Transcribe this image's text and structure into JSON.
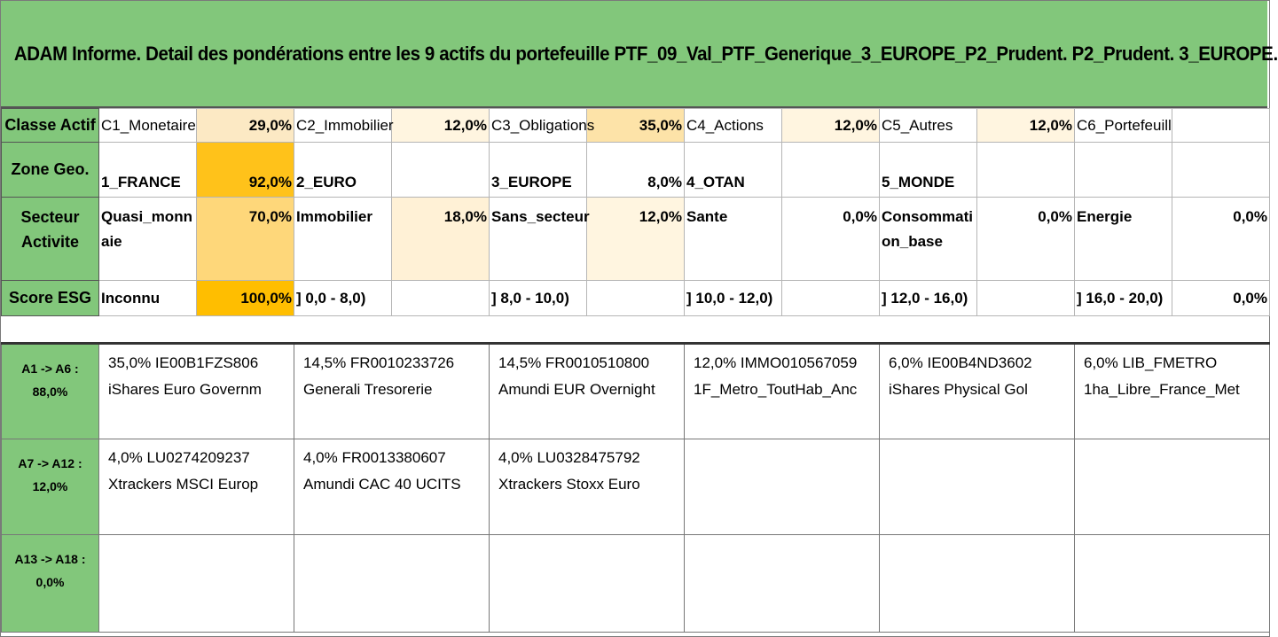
{
  "title": "ADAM Informe. Detail des pondérations entre les 9 actifs du portefeuille PTF_09_Val_PTF_Generique_3_EUROPE_P2_Prudent. P2_Prudent. 3_EUROPE.",
  "colors": {
    "header_green": "#82c77b",
    "heat_light": "#fff2cc",
    "heat_mid": "#ffd966",
    "heat_strong": "#ffc000"
  },
  "rows": {
    "classe": {
      "label": "Classe Actif",
      "cells": [
        {
          "name": "C1_Monetaire",
          "pct": "29,0%"
        },
        {
          "name": "C2_Immobilier",
          "pct": "12,0%"
        },
        {
          "name": "C3_Obligations",
          "pct": "35,0%"
        },
        {
          "name": "C4_Actions",
          "pct": "12,0%"
        },
        {
          "name": "C5_Autres",
          "pct": "12,0%"
        },
        {
          "name": "C6_Portefeuill",
          "pct": ""
        }
      ]
    },
    "zone": {
      "label": "Zone Geo.",
      "cells": [
        {
          "name": "1_FRANCE",
          "pct": "92,0%"
        },
        {
          "name": "2_EURO",
          "pct": ""
        },
        {
          "name": "3_EUROPE",
          "pct": "8,0%"
        },
        {
          "name": "4_OTAN",
          "pct": ""
        },
        {
          "name": "5_MONDE",
          "pct": ""
        },
        {
          "name": "",
          "pct": ""
        }
      ]
    },
    "secteur": {
      "label": "Secteur Activite",
      "cells": [
        {
          "name": "Quasi_monnaie",
          "pct": "70,0%"
        },
        {
          "name": "Immobilier",
          "pct": "18,0%"
        },
        {
          "name": "Sans_secteur",
          "pct": "12,0%"
        },
        {
          "name": "Sante",
          "pct": "0,0%"
        },
        {
          "name": "Consommation_base",
          "pct": "0,0%"
        },
        {
          "name": "Energie",
          "pct": "0,0%"
        }
      ]
    },
    "esg": {
      "label": "Score ESG",
      "cells": [
        {
          "name": "Inconnu",
          "pct": "100,0%"
        },
        {
          "name": "] 0,0 - 8,0)",
          "pct": ""
        },
        {
          "name": "] 8,0 - 10,0)",
          "pct": ""
        },
        {
          "name": "] 10,0 - 12,0)",
          "pct": ""
        },
        {
          "name": "] 12,0 - 16,0)",
          "pct": ""
        },
        {
          "name": "] 16,0 - 20,0)",
          "pct": "0,0%"
        }
      ]
    }
  },
  "assets": [
    {
      "label": "A1 -> A6 :",
      "total": "88,0%",
      "items": [
        {
          "line1": "35,0% IE00B1FZS806",
          "line2": "iShares Euro Governm"
        },
        {
          "line1": "14,5% FR0010233726",
          "line2": "Generali Tresorerie"
        },
        {
          "line1": "14,5% FR0010510800",
          "line2": "Amundi EUR Overnight"
        },
        {
          "line1": "12,0% IMMO010567059",
          "line2": "1F_Metro_ToutHab_Anc"
        },
        {
          "line1": "6,0% IE00B4ND3602",
          "line2": "iShares Physical Gol"
        },
        {
          "line1": "6,0% LIB_FMETRO",
          "line2": "1ha_Libre_France_Met"
        }
      ]
    },
    {
      "label": "A7 -> A12 :",
      "total": "12,0%",
      "items": [
        {
          "line1": "4,0% LU0274209237",
          "line2": "Xtrackers MSCI Europ"
        },
        {
          "line1": "4,0% FR0013380607",
          "line2": "Amundi CAC 40 UCITS"
        },
        {
          "line1": "4,0% LU0328475792",
          "line2": "Xtrackers Stoxx Euro"
        },
        {
          "line1": "",
          "line2": ""
        },
        {
          "line1": "",
          "line2": ""
        },
        {
          "line1": "",
          "line2": ""
        }
      ]
    },
    {
      "label": "A13 -> A18 :",
      "total": "0,0%",
      "items": [
        {
          "line1": "",
          "line2": ""
        },
        {
          "line1": "",
          "line2": ""
        },
        {
          "line1": "",
          "line2": ""
        },
        {
          "line1": "",
          "line2": ""
        },
        {
          "line1": "",
          "line2": ""
        },
        {
          "line1": "",
          "line2": ""
        }
      ]
    }
  ]
}
